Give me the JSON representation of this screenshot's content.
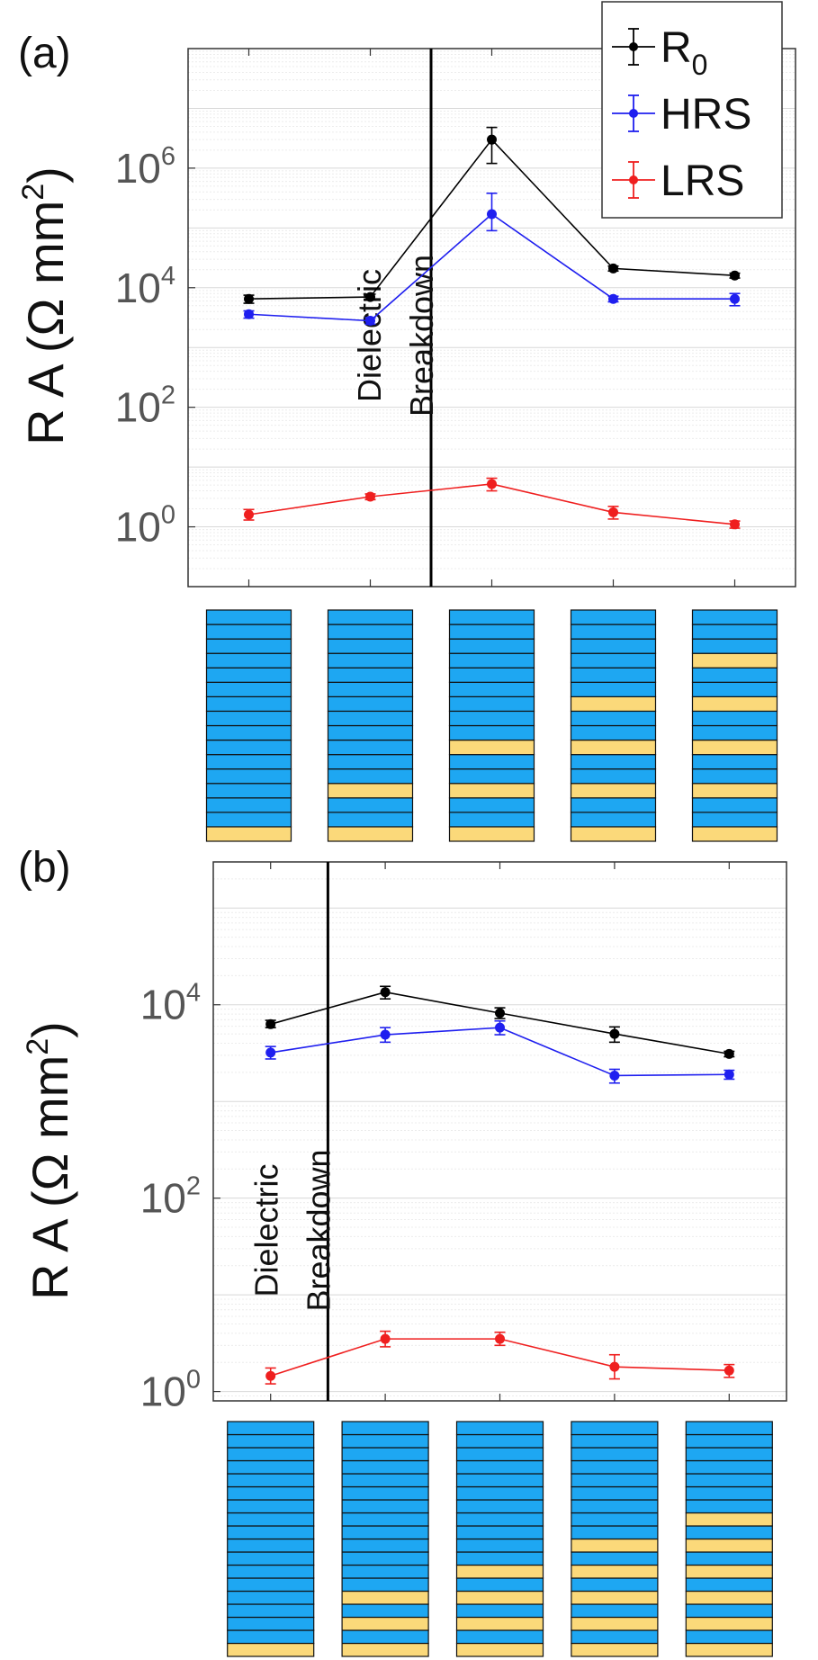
{
  "colors": {
    "r0": "#000000",
    "hrs": "#1f1fef",
    "lrs": "#ef1f1f",
    "blue_layer": "#1ea7f2",
    "yellow_layer": "#fbd97a",
    "grid": "#dddddd"
  },
  "legend": [
    {
      "key": "r0",
      "base": "R",
      "sub": "0"
    },
    {
      "key": "hrs",
      "base": "HRS",
      "sub": ""
    },
    {
      "key": "lrs",
      "base": "LRS",
      "sub": ""
    }
  ],
  "chart_data": [
    {
      "type": "line",
      "panel_label": "(a)",
      "ylabel": {
        "prefix": "R A (Ω mm",
        "sup": "2",
        "suffix": ")"
      },
      "yscale": "log",
      "ylim": [
        0.1,
        100000000
      ],
      "yticks": [
        {
          "base": "10",
          "exp": "0"
        },
        {
          "base": "10",
          "exp": "2"
        },
        {
          "base": "10",
          "exp": "4"
        },
        {
          "base": "10",
          "exp": "6"
        }
      ],
      "x": [
        1,
        2,
        3,
        4,
        5
      ],
      "xlim": [
        0.5,
        5.5
      ],
      "grid": true,
      "legend_position": "top-right",
      "series": [
        {
          "key": "r0",
          "values": [
            6500,
            7000,
            3000000,
            21000,
            16000
          ],
          "err_low": [
            5500,
            6200,
            1200000,
            19000,
            14500
          ],
          "err_high": [
            7500,
            7800,
            4800000,
            23000,
            17500
          ]
        },
        {
          "key": "hrs",
          "values": [
            3600,
            2800,
            170000,
            6500,
            6500
          ],
          "err_low": [
            3100,
            2450,
            90000,
            5800,
            5000
          ],
          "err_high": [
            4100,
            3150,
            380000,
            7200,
            8000
          ]
        },
        {
          "key": "lrs",
          "values": [
            1.6,
            3.2,
            5.2,
            1.75,
            1.1
          ],
          "err_low": [
            1.3,
            2.85,
            4.0,
            1.35,
            0.95
          ],
          "err_high": [
            1.95,
            3.55,
            6.5,
            2.2,
            1.25
          ]
        }
      ],
      "annotation": {
        "x": 2.5,
        "lines": [
          "Dielectric",
          "Breakdown"
        ]
      },
      "stacks": [
        {
          "layers": 16,
          "yellow": [
            1
          ]
        },
        {
          "layers": 16,
          "yellow": [
            1,
            4
          ]
        },
        {
          "layers": 16,
          "yellow": [
            1,
            4,
            7
          ]
        },
        {
          "layers": 16,
          "yellow": [
            1,
            4,
            7,
            10
          ]
        },
        {
          "layers": 16,
          "yellow": [
            1,
            4,
            7,
            10,
            13
          ]
        }
      ]
    },
    {
      "type": "line",
      "panel_label": "(b)",
      "ylabel": {
        "prefix": "R A (Ω mm",
        "sup": "2",
        "suffix": ")"
      },
      "yscale": "log",
      "ylim": [
        0.8,
        300000
      ],
      "yticks": [
        {
          "base": "10",
          "exp": "0"
        },
        {
          "base": "10",
          "exp": "2"
        },
        {
          "base": "10",
          "exp": "4"
        }
      ],
      "x": [
        1,
        2,
        3,
        4,
        5
      ],
      "xlim": [
        0.5,
        5.5
      ],
      "grid": true,
      "series": [
        {
          "key": "r0",
          "values": [
            6300,
            13500,
            8200,
            5000,
            3100
          ],
          "err_low": [
            5800,
            11500,
            7200,
            4100,
            2900
          ],
          "err_high": [
            6900,
            15500,
            9300,
            5900,
            3300
          ]
        },
        {
          "key": "hrs",
          "values": [
            3200,
            4900,
            5800,
            1850,
            1900
          ],
          "err_low": [
            2750,
            4100,
            4900,
            1550,
            1700
          ],
          "err_high": [
            3700,
            5800,
            6800,
            2150,
            2100
          ]
        },
        {
          "key": "lrs",
          "values": [
            1.45,
            3.5,
            3.5,
            1.8,
            1.65
          ],
          "err_low": [
            1.2,
            2.9,
            3.0,
            1.35,
            1.4
          ],
          "err_high": [
            1.75,
            4.2,
            4.1,
            2.4,
            1.9
          ]
        }
      ],
      "annotation": {
        "x": 1.5,
        "lines": [
          "Dielectric",
          "Breakdown"
        ]
      },
      "stacks": [
        {
          "layers": 18,
          "yellow": [
            1
          ]
        },
        {
          "layers": 18,
          "yellow": [
            1,
            3,
            5
          ]
        },
        {
          "layers": 18,
          "yellow": [
            1,
            3,
            5,
            7
          ]
        },
        {
          "layers": 18,
          "yellow": [
            1,
            3,
            5,
            7,
            9
          ]
        },
        {
          "layers": 18,
          "yellow": [
            1,
            3,
            5,
            7,
            9,
            11
          ]
        }
      ]
    }
  ]
}
